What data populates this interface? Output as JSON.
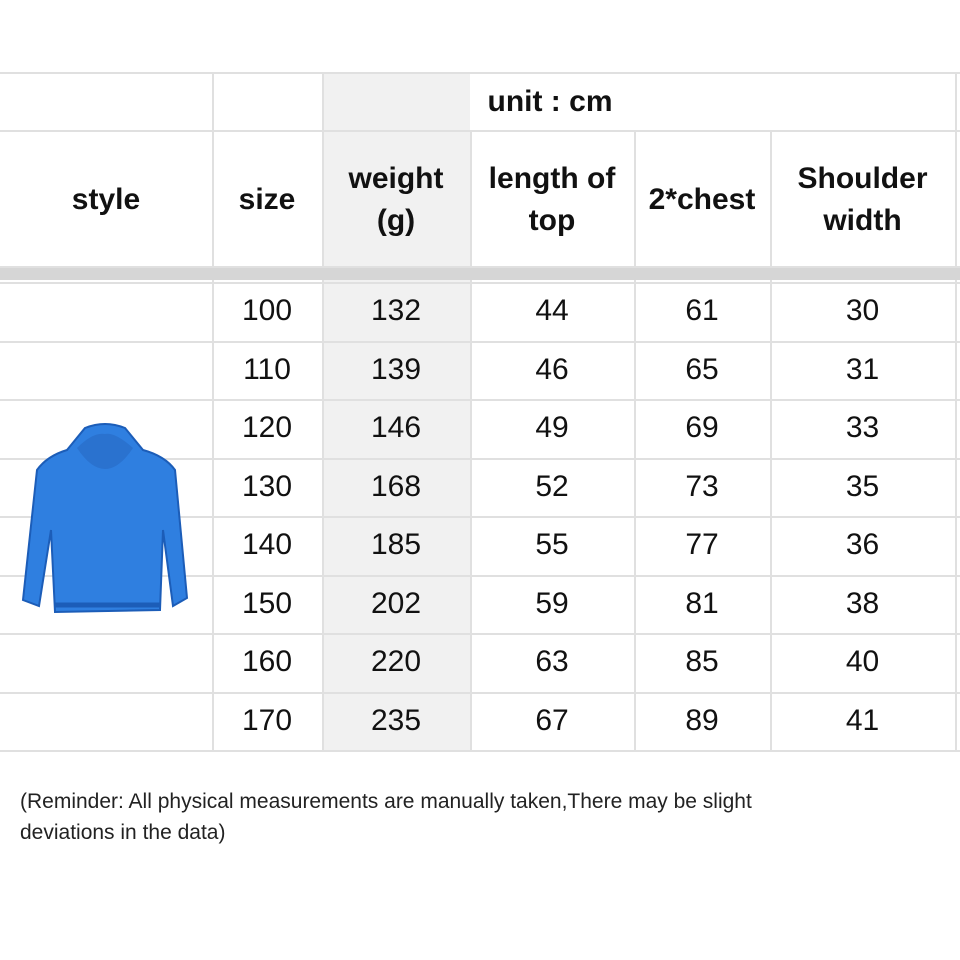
{
  "header": {
    "unit": "unit : cm",
    "columns": [
      "style",
      "size",
      "weight (g)",
      "length of top",
      "2*chest",
      "Shoulder width"
    ],
    "columns_lines": [
      [
        "style"
      ],
      [
        "size"
      ],
      [
        "weight",
        "(g)"
      ],
      [
        "length of",
        "top"
      ],
      [
        "2*chest"
      ],
      [
        "Shoulder",
        "width"
      ]
    ]
  },
  "style_image": {
    "icon": "blue-hoodie",
    "color": "#2f7fe0"
  },
  "rows": [
    [
      "100",
      "132",
      "44",
      "61",
      "30"
    ],
    [
      "110",
      "139",
      "46",
      "65",
      "31"
    ],
    [
      "120",
      "146",
      "49",
      "69",
      "33"
    ],
    [
      "130",
      "168",
      "52",
      "73",
      "35"
    ],
    [
      "140",
      "185",
      "55",
      "77",
      "36"
    ],
    [
      "150",
      "202",
      "59",
      "81",
      "38"
    ],
    [
      "160",
      "220",
      "63",
      "85",
      "40"
    ],
    [
      "170",
      "235",
      "67",
      "89",
      "41"
    ]
  ],
  "reminder": {
    "line1": "(Reminder: All physical measurements are manually taken,There may be slight",
    "line2": "deviations in the data)"
  }
}
